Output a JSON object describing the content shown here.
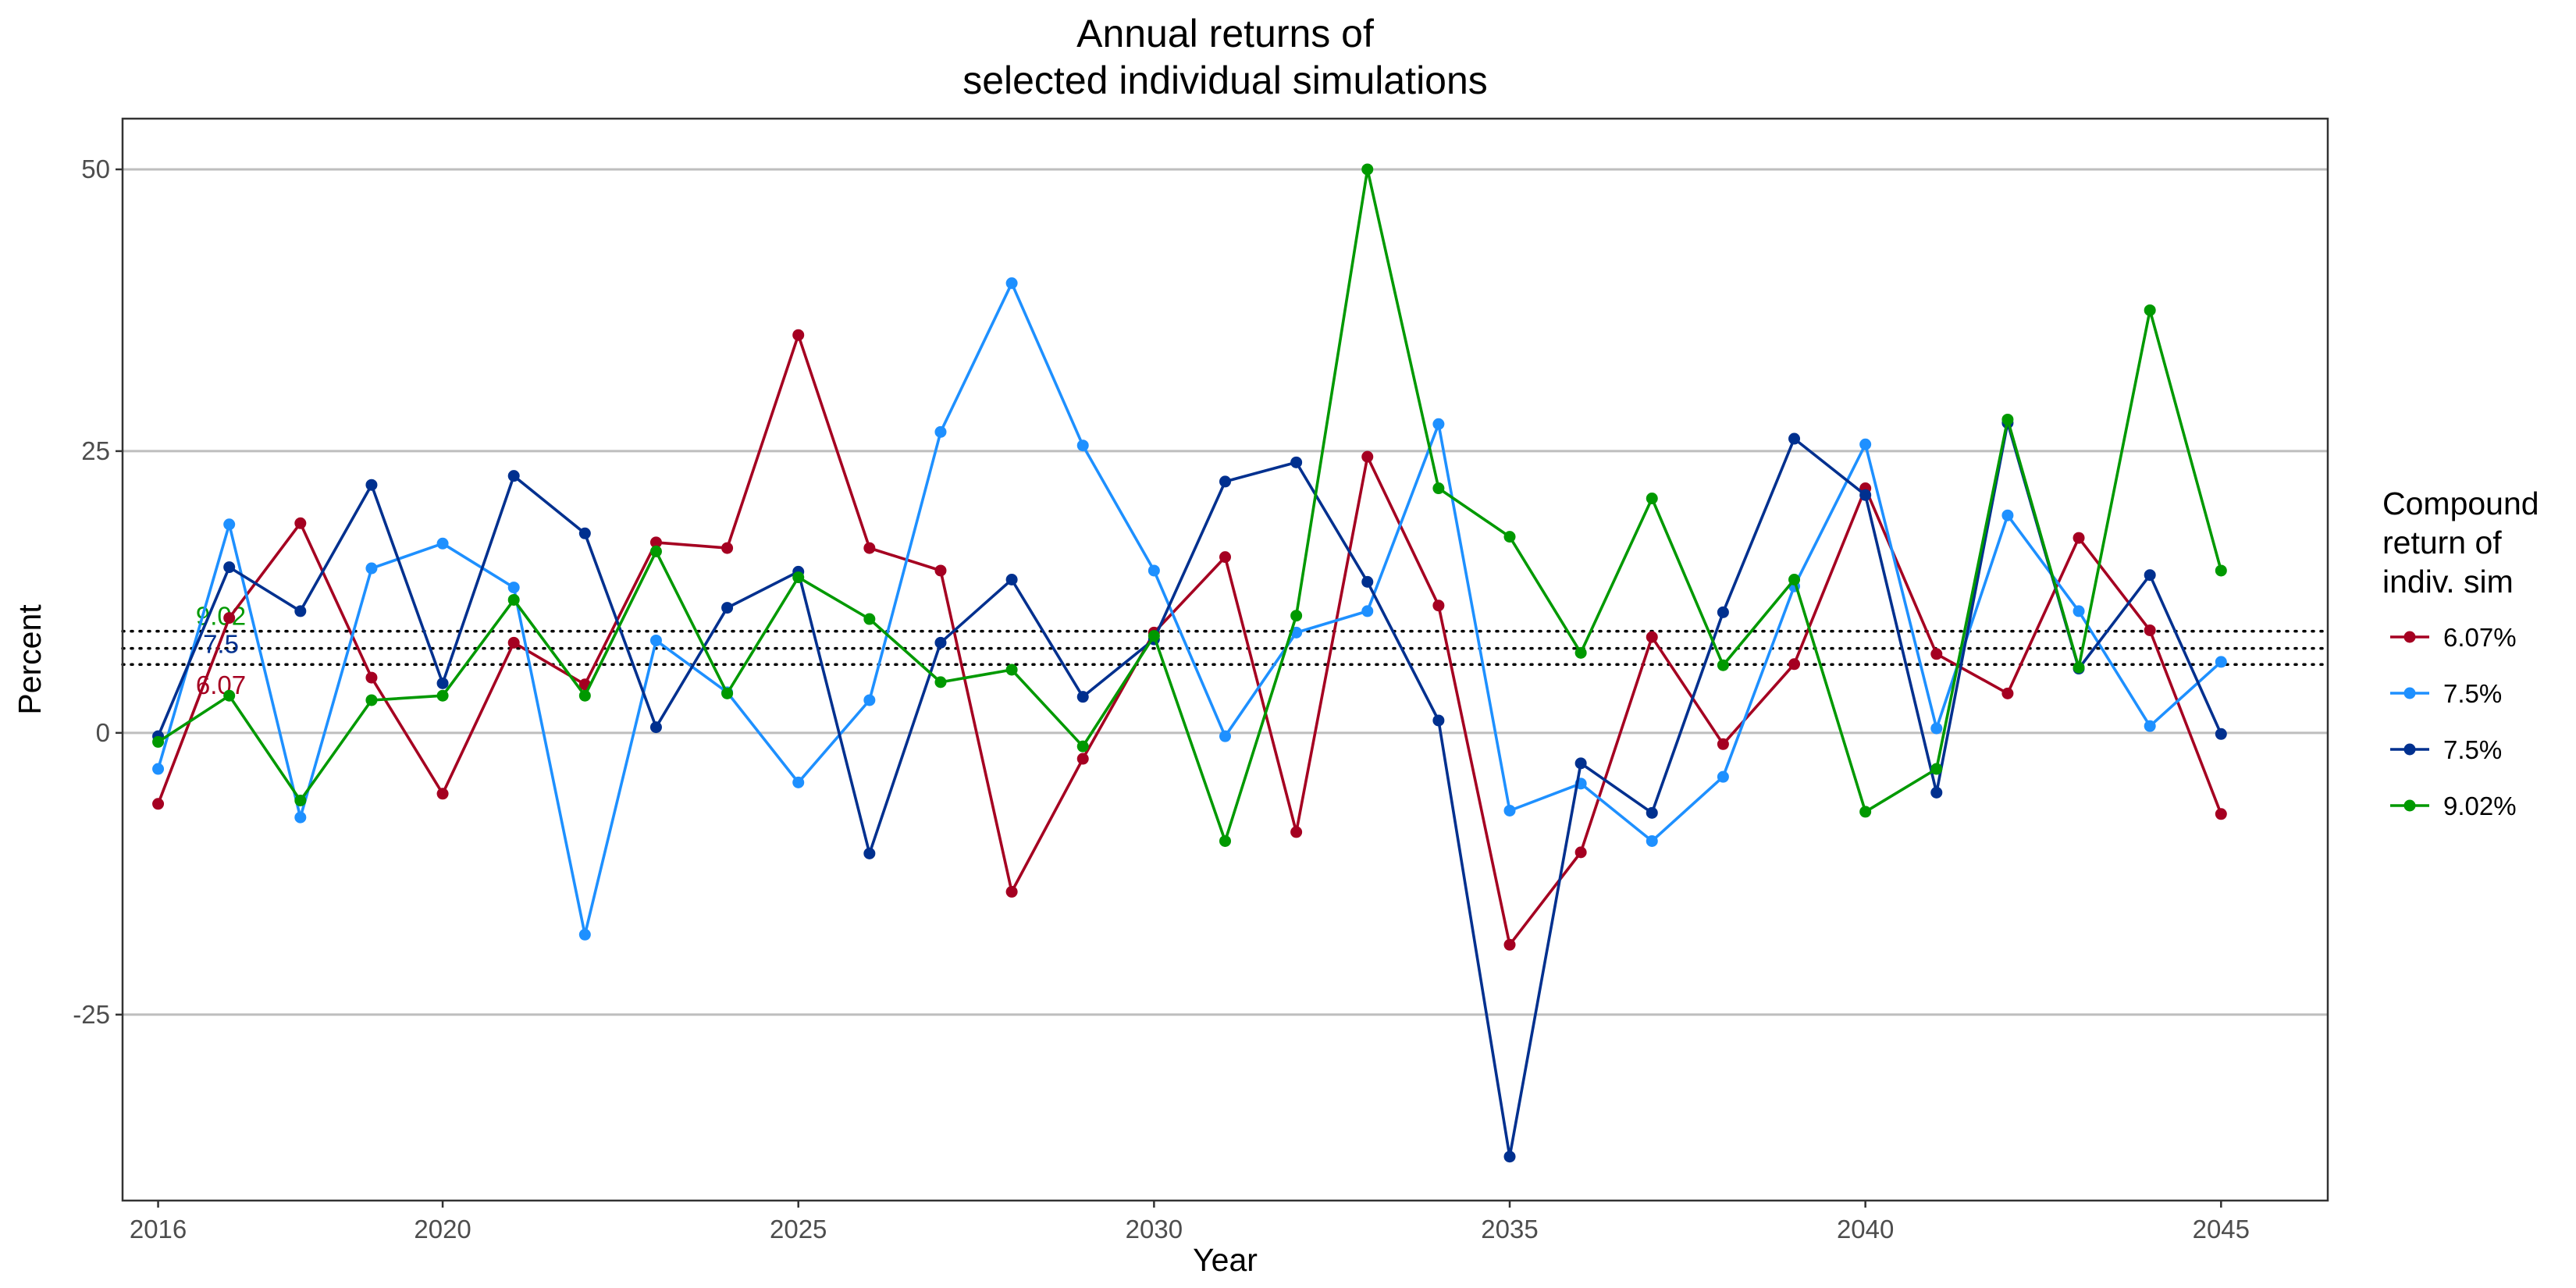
{
  "chart_data": {
    "type": "line",
    "title_lines": [
      "Annual returns of",
      "selected individual simulations"
    ],
    "xlabel": "Year",
    "ylabel": "Percent",
    "xlim": [
      2015.5,
      2046.5
    ],
    "ylim": [
      -41.5,
      54.5
    ],
    "x_ticks": [
      2016,
      2020,
      2025,
      2030,
      2035,
      2040,
      2045
    ],
    "y_ticks": [
      -25,
      0,
      25,
      50
    ],
    "y_tick_labels": [
      "-25",
      "0",
      "25",
      "50"
    ],
    "grid": "horizontal major only",
    "legend_position": "right",
    "legend_title_lines": [
      "Compound",
      "return of",
      "indiv. sim"
    ],
    "x": [
      2016,
      2017,
      2018,
      2019,
      2020,
      2021,
      2022,
      2023,
      2024,
      2025,
      2026,
      2027,
      2028,
      2029,
      2030,
      2031,
      2032,
      2033,
      2034,
      2035,
      2036,
      2037,
      2038,
      2039,
      2040,
      2041,
      2042,
      2043,
      2044,
      2045
    ],
    "series": [
      {
        "name": "6.07%",
        "color": "#A50021",
        "values": [
          -6.3,
          10.2,
          18.6,
          4.9,
          -5.4,
          8.0,
          4.3,
          16.9,
          16.4,
          35.3,
          16.4,
          14.4,
          -14.1,
          -2.3,
          8.9,
          15.6,
          -8.8,
          24.5,
          11.3,
          -18.8,
          -10.6,
          8.5,
          -1.0,
          6.1,
          21.7,
          7.0,
          3.5,
          17.3,
          9.1,
          -7.2
        ]
      },
      {
        "name": "7.5%",
        "color": "#1E90FF",
        "values": [
          -3.2,
          18.5,
          -7.5,
          14.6,
          16.8,
          12.9,
          -17.9,
          8.2,
          3.6,
          -4.4,
          2.9,
          26.7,
          39.9,
          25.5,
          14.4,
          -0.3,
          8.9,
          10.8,
          27.4,
          -6.9,
          -4.5,
          -9.6,
          -3.9,
          13.0,
          25.6,
          0.4,
          19.3,
          10.8,
          0.6,
          6.3
        ]
      },
      {
        "name": "7.5%",
        "color": "#00308F",
        "values": [
          -0.3,
          14.7,
          10.8,
          22.0,
          4.4,
          22.8,
          17.7,
          0.5,
          11.1,
          14.3,
          -10.7,
          8.0,
          13.6,
          3.2,
          8.3,
          22.3,
          24.0,
          13.4,
          1.1,
          -37.6,
          -2.7,
          -7.1,
          10.7,
          26.1,
          21.1,
          -5.3,
          27.5,
          5.7,
          14.0,
          -0.1
        ]
      },
      {
        "name": "9.02%",
        "color": "#009900",
        "values": [
          -0.8,
          3.3,
          -6.0,
          2.9,
          3.3,
          11.8,
          3.3,
          16.1,
          3.5,
          13.8,
          10.1,
          4.5,
          5.6,
          -1.2,
          8.6,
          -9.6,
          10.4,
          50.0,
          21.7,
          17.4,
          7.1,
          20.8,
          6.0,
          13.6,
          -7.0,
          -3.2,
          27.8,
          5.8,
          37.5,
          14.4
        ]
      }
    ],
    "reference_lines": [
      {
        "value": 9.02,
        "label": "9.02",
        "color": "#009900"
      },
      {
        "value": 7.5,
        "label": "7.5",
        "color": "#00308F"
      },
      {
        "value": 6.07,
        "label": "6.07",
        "color": "#A50021"
      }
    ]
  }
}
